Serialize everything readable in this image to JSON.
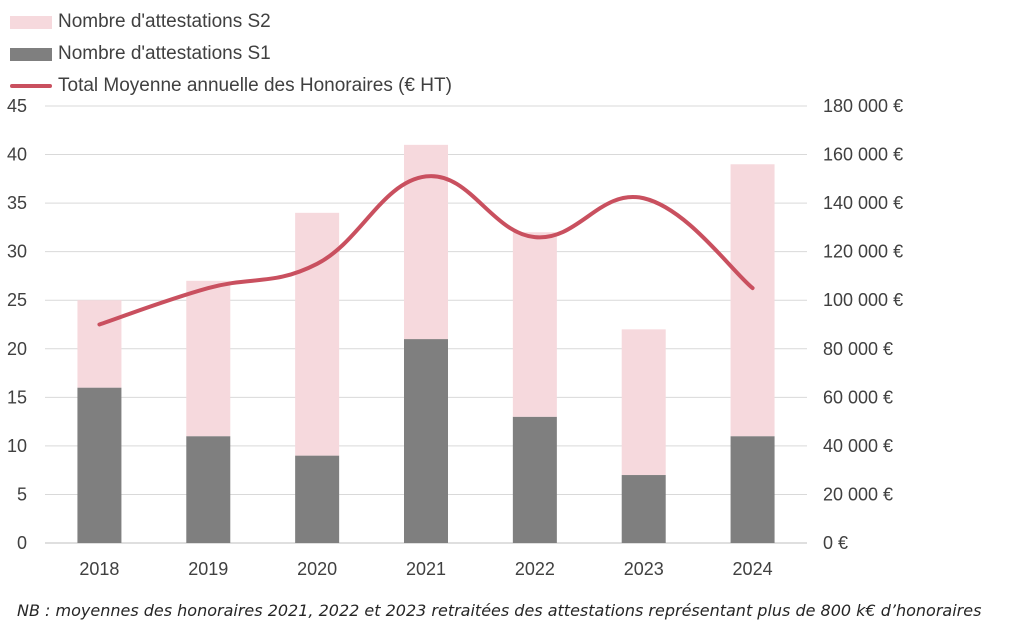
{
  "legend": {
    "s2_label": "Nombre d'attestations S2",
    "s1_label": "Nombre d'attestations S1",
    "line_label": "Total Moyenne annuelle des Honoraires (€ HT)"
  },
  "colors": {
    "s2": "#f6d9dd",
    "s1": "#7f7f7f",
    "line": "#c9505f",
    "grid": "#d9d9d9",
    "axis_text": "#404040"
  },
  "note": "NB : moyennes des honoraires 2021, 2022 et 2023 retraitées des attestations représentant plus de 800 k€ d’honoraires",
  "chart_data": {
    "type": "bar",
    "stacked": true,
    "categories": [
      "2018",
      "2019",
      "2020",
      "2021",
      "2022",
      "2023",
      "2024"
    ],
    "series": [
      {
        "name": "Nombre d'attestations S1",
        "type": "bar",
        "axis": "left",
        "values": [
          16,
          11,
          9,
          21,
          13,
          7,
          11
        ]
      },
      {
        "name": "Nombre d'attestations S2",
        "type": "bar",
        "axis": "left",
        "values": [
          9,
          16,
          25,
          20,
          19,
          15,
          28
        ]
      },
      {
        "name": "Total Moyenne annuelle des Honoraires (€ HT)",
        "type": "line",
        "axis": "right",
        "smooth": true,
        "values": [
          90000,
          105000,
          115000,
          151000,
          126000,
          142000,
          105000
        ]
      }
    ],
    "left_axis": {
      "min": 0,
      "max": 45,
      "step": 5,
      "ticks": [
        "0",
        "5",
        "10",
        "15",
        "20",
        "25",
        "30",
        "35",
        "40",
        "45"
      ]
    },
    "right_axis": {
      "min": 0,
      "max": 180000,
      "step": 20000,
      "ticks": [
        "0 €",
        "20 000 €",
        "40 000 €",
        "60 000 €",
        "80 000 €",
        "100 000 €",
        "120 000 €",
        "140 000 €",
        "160 000 €",
        "180 000 €"
      ]
    },
    "grid": true,
    "legend_position": "top-left"
  }
}
